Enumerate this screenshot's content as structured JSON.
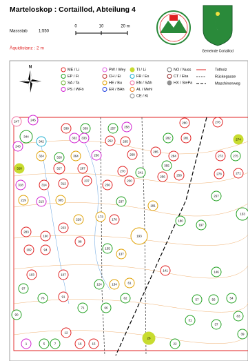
{
  "header": {
    "title": "Marteloskop : Cortaillod, Abteilung 4",
    "scale_label": "Massstab",
    "scale_value": "1:550",
    "scale_ticks": [
      "0",
      "10",
      "20 m"
    ],
    "equidistance": "Äquidistanz : 2 m",
    "municipality": "Gemeinde Cortaillod"
  },
  "legend": {
    "species": [
      {
        "label": "ME / Li",
        "color": "#e02020",
        "filled": false
      },
      {
        "label": "EP / Fi",
        "color": "#20a020",
        "filled": false
      },
      {
        "label": "SA / Ta",
        "color": "#70b030",
        "filled": false
      },
      {
        "label": "PS / WFö",
        "color": "#d020d0",
        "filled": false
      },
      {
        "label": "PW / Wey",
        "color": "#e060e0",
        "filled": false
      },
      {
        "label": "CH / Ei",
        "color": "#c03030",
        "filled": false
      },
      {
        "label": "HE / Bu",
        "color": "#e0a000",
        "filled": false
      },
      {
        "label": "ER / BAh",
        "color": "#2040e0",
        "filled": false
      },
      {
        "label": "TI / Li",
        "color": "#c8dc30",
        "filled": true
      },
      {
        "label": "FR / Es",
        "color": "#20b0d0",
        "filled": false
      },
      {
        "label": "EN / SAh",
        "color": "#f070a0",
        "filled": false
      },
      {
        "label": "AL / Mehl",
        "color": "#f08020",
        "filled": false
      },
      {
        "label": "CE / Ki",
        "color": "#909090",
        "filled": false
      },
      {
        "label": "NO / Nuss",
        "color": "#707070",
        "filled": false
      },
      {
        "label": "CT / Eka",
        "color": "#902020",
        "filled": false
      },
      {
        "label": "HX / StePa",
        "color": "#909090",
        "filled": true
      }
    ],
    "lines": [
      "Totholz",
      "Rückegasse",
      "Maschinenweg"
    ]
  },
  "trees": [
    {
      "label": "247",
      "color": "#f070a0"
    },
    {
      "label": "245",
      "color": "#d020d0"
    },
    {
      "label": "338",
      "color": "#e02020"
    },
    {
      "label": "339",
      "color": "#20a020"
    },
    {
      "label": "257",
      "color": "#20a020"
    },
    {
      "label": "258",
      "color": "#d020d0"
    },
    {
      "label": "280",
      "color": "#e02020"
    },
    {
      "label": "276",
      "color": "#e02020"
    },
    {
      "label": "274",
      "color": "#c8dc30"
    },
    {
      "label": "344",
      "color": "#20a020"
    },
    {
      "label": "243",
      "color": "#d020d0"
    },
    {
      "label": "342",
      "color": "#20b0d0"
    },
    {
      "label": "332",
      "color": "#d020d0"
    },
    {
      "label": "333",
      "color": "#d020d0"
    },
    {
      "label": "262",
      "color": "#e02020"
    },
    {
      "label": "265",
      "color": "#e02020"
    },
    {
      "label": "282",
      "color": "#20a020"
    },
    {
      "label": "281",
      "color": "#e02020"
    },
    {
      "label": "324",
      "color": "#e0a000"
    },
    {
      "label": "328",
      "color": "#20a020"
    },
    {
      "label": "364",
      "color": "#e0a000"
    },
    {
      "label": "250",
      "color": "#d020d0"
    },
    {
      "label": "268",
      "color": "#e02020"
    },
    {
      "label": "285",
      "color": "#e02020"
    },
    {
      "label": "284",
      "color": "#e02020"
    },
    {
      "label": "273",
      "color": "#e02020"
    },
    {
      "label": "275",
      "color": "#20a020"
    },
    {
      "label": "320",
      "color": "#c8dc30"
    },
    {
      "label": "327",
      "color": "#e02020"
    },
    {
      "label": "287",
      "color": "#e02020"
    },
    {
      "label": "270",
      "color": "#e02020"
    },
    {
      "label": "355",
      "color": "#20a020"
    },
    {
      "label": "278",
      "color": "#e02020"
    },
    {
      "label": "271",
      "color": "#e02020"
    },
    {
      "label": "318",
      "color": "#d020d0"
    },
    {
      "label": "314",
      "color": "#e02020"
    },
    {
      "label": "312",
      "color": "#e02020"
    },
    {
      "label": "237",
      "color": "#e02020"
    },
    {
      "label": "236",
      "color": "#e02020"
    },
    {
      "label": "230",
      "color": "#e02020"
    },
    {
      "label": "241",
      "color": "#20a020"
    },
    {
      "label": "256",
      "color": "#e02020"
    },
    {
      "label": "258",
      "color": "#e02020"
    },
    {
      "label": "219",
      "color": "#e0a000"
    },
    {
      "label": "213",
      "color": "#d020d0"
    },
    {
      "label": "305",
      "color": "#e0a000"
    },
    {
      "label": "237",
      "color": "#20a020"
    },
    {
      "label": "181",
      "color": "#e0a000"
    },
    {
      "label": "267",
      "color": "#20a020"
    },
    {
      "label": "153",
      "color": "#20a020"
    },
    {
      "label": "283",
      "color": "#e02020"
    },
    {
      "label": "160",
      "color": "#e02020"
    },
    {
      "label": "223",
      "color": "#e02020"
    },
    {
      "label": "229",
      "color": "#e0a000"
    },
    {
      "label": "173",
      "color": "#e0a000"
    },
    {
      "label": "170",
      "color": "#e02020"
    },
    {
      "label": "193",
      "color": "#e0a000"
    },
    {
      "label": "180",
      "color": "#20a020"
    },
    {
      "label": "197",
      "color": "#20a020"
    },
    {
      "label": "102",
      "color": "#e02020"
    },
    {
      "label": "94",
      "color": "#e02020"
    },
    {
      "label": "98",
      "color": "#e02020"
    },
    {
      "label": "135",
      "color": "#20a020"
    },
    {
      "label": "137",
      "color": "#e0a000"
    },
    {
      "label": "141",
      "color": "#e02020"
    },
    {
      "label": "146",
      "color": "#20a020"
    },
    {
      "label": "103",
      "color": "#e02020"
    },
    {
      "label": "107",
      "color": "#e02020"
    },
    {
      "label": "124",
      "color": "#20a020"
    },
    {
      "label": "134",
      "color": "#e0a000"
    },
    {
      "label": "61",
      "color": "#e0a000"
    },
    {
      "label": "97",
      "color": "#20a020"
    },
    {
      "label": "76",
      "color": "#20a020"
    },
    {
      "label": "91",
      "color": "#e02020"
    },
    {
      "label": "62",
      "color": "#20a020"
    },
    {
      "label": "57",
      "color": "#20a020"
    },
    {
      "label": "56",
      "color": "#20a020"
    },
    {
      "label": "54",
      "color": "#20a020"
    },
    {
      "label": "83",
      "color": "#20a020"
    },
    {
      "label": "71",
      "color": "#20a020"
    },
    {
      "label": "90",
      "color": "#20a020"
    },
    {
      "label": "66",
      "color": "#20a020"
    },
    {
      "label": "31",
      "color": "#20a020"
    },
    {
      "label": "37",
      "color": "#20a020"
    },
    {
      "label": "28",
      "color": "#c8dc30"
    },
    {
      "label": "16",
      "color": "#e02020"
    },
    {
      "label": "15",
      "color": "#e02020"
    },
    {
      "label": "5",
      "color": "#20a020"
    },
    {
      "label": "7",
      "color": "#20a020"
    },
    {
      "label": "1",
      "color": "#d020d0"
    },
    {
      "label": "12",
      "color": "#e02020"
    },
    {
      "label": "22",
      "color": "#20a020"
    },
    {
      "label": "39",
      "color": "#20a020"
    }
  ]
}
